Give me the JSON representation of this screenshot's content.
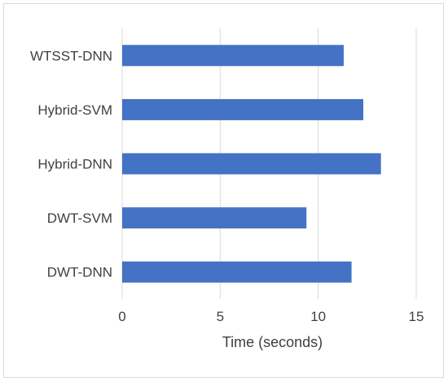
{
  "chart_data": {
    "type": "bar",
    "orientation": "horizontal",
    "categories": [
      "WTSST-DNN",
      "Hybrid-SVM",
      "Hybrid-DNN",
      "DWT-SVM",
      "DWT-DNN"
    ],
    "values": [
      11.3,
      12.3,
      13.2,
      9.4,
      11.7
    ],
    "title": "",
    "xlabel": "Time (seconds)",
    "ylabel": "",
    "xlim": [
      0,
      15
    ],
    "xticks": [
      0,
      5,
      10,
      15
    ],
    "grid": true,
    "legend": "none",
    "bar_color": "#4472c4",
    "grid_color": "#d9d9d9"
  }
}
